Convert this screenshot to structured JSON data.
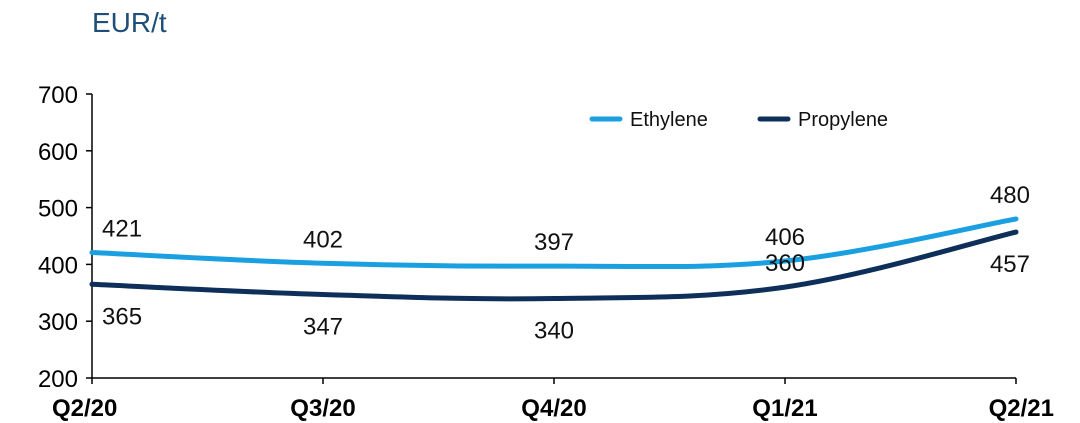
{
  "chart_data": {
    "type": "line",
    "unit_label": "EUR/t",
    "categories": [
      "Q2/20",
      "Q3/20",
      "Q4/20",
      "Q1/21",
      "Q2/21"
    ],
    "series": [
      {
        "name": "Ethylene",
        "values": [
          421,
          402,
          397,
          406,
          480
        ],
        "color": "#1aa0e0"
      },
      {
        "name": "Propylene",
        "values": [
          365,
          347,
          340,
          360,
          457
        ],
        "color": "#0d2f5a"
      }
    ],
    "yticks": [
      200,
      300,
      400,
      500,
      600,
      700
    ],
    "ylim": [
      200,
      700
    ],
    "grid": false,
    "legend_position": "top-right",
    "label_positions": {
      "Ethylene": [
        "above",
        "above",
        "above",
        "above",
        "above"
      ],
      "Propylene": [
        "below",
        "below",
        "below",
        "above",
        "below"
      ]
    }
  }
}
